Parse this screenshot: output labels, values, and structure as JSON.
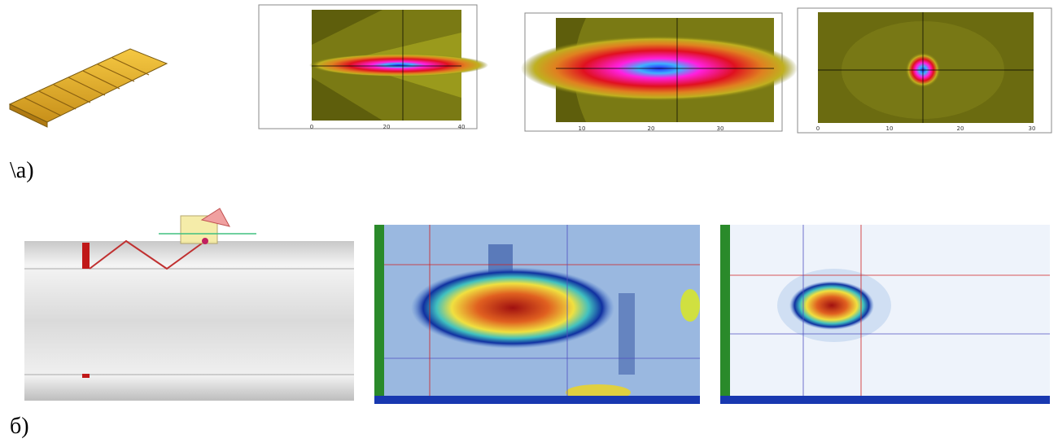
{
  "panel_a": {
    "label": "\\а)",
    "plots": [
      {
        "xticks": [
          "0",
          "20",
          "40"
        ]
      },
      {
        "xticks": [
          "10",
          "20",
          "30"
        ]
      },
      {
        "xticks": [
          "0",
          "10",
          "20",
          "30"
        ]
      }
    ]
  },
  "panel_b": {
    "label": "б)"
  }
}
